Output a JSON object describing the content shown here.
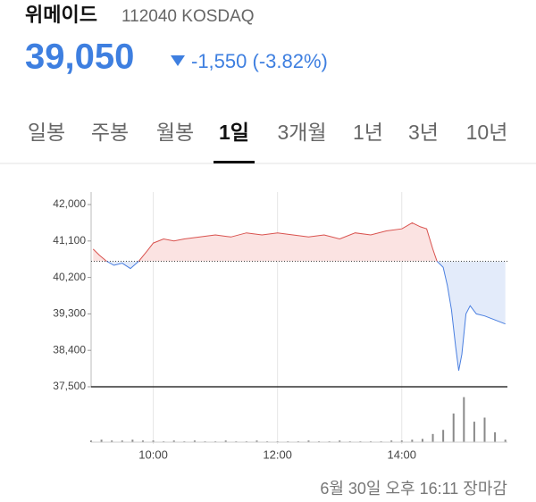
{
  "header": {
    "name": "위메이드",
    "code": "112040 KOSDAQ",
    "price": "39,050",
    "change": "-1,550 (-3.82%)"
  },
  "tabs": [
    "일봉",
    "주봉",
    "월봉",
    "1일",
    "3개월",
    "1년",
    "3년",
    "10년"
  ],
  "selected_tab": 3,
  "chart_data": {
    "type": "line",
    "series": [
      {
        "name": "price",
        "color": "#d9534f",
        "color_below": "#4a7fe0",
        "x": [
          542,
          548,
          555,
          562,
          570,
          578,
          586,
          594,
          600,
          610,
          620,
          630,
          645,
          660,
          675,
          690,
          705,
          720,
          735,
          750,
          765,
          780,
          795,
          810,
          825,
          840,
          850,
          858,
          864,
          870,
          874,
          880,
          884,
          888,
          892,
          895,
          898,
          902,
          906,
          912,
          920,
          930,
          940
        ],
        "values": [
          40900,
          40750,
          40600,
          40500,
          40550,
          40420,
          40600,
          40850,
          41050,
          41150,
          41100,
          41150,
          41200,
          41250,
          41200,
          41300,
          41250,
          41300,
          41250,
          41200,
          41250,
          41150,
          41300,
          41250,
          41350,
          41400,
          41550,
          41450,
          41400,
          40900,
          40600,
          40450,
          40000,
          39400,
          38500,
          37900,
          38300,
          39300,
          39500,
          39300,
          39250,
          39150,
          39050
        ]
      }
    ],
    "base_value": 40600,
    "xlim": [
      540,
      942
    ],
    "ylim": [
      37500,
      42000
    ],
    "yticks": [
      {
        "value": 42000,
        "label": "42,000"
      },
      {
        "value": 41100,
        "label": "41,100"
      },
      {
        "value": 40200,
        "label": "40,200"
      },
      {
        "value": 39300,
        "label": "39,300"
      },
      {
        "value": 38400,
        "label": "38,400"
      },
      {
        "value": 37500,
        "label": "37,500"
      }
    ],
    "xticks": [
      {
        "value": 600,
        "label": "10:00"
      },
      {
        "value": 720,
        "label": "12:00"
      },
      {
        "value": 840,
        "label": "14:00"
      }
    ],
    "volume": {
      "color": "#8a8a8a",
      "ylim": [
        0,
        60
      ],
      "x": [
        540,
        550,
        560,
        570,
        580,
        590,
        600,
        610,
        620,
        630,
        640,
        650,
        660,
        670,
        680,
        690,
        700,
        710,
        720,
        730,
        740,
        750,
        760,
        770,
        780,
        790,
        800,
        810,
        820,
        830,
        840,
        850,
        860,
        870,
        880,
        890,
        900,
        910,
        920,
        930,
        940
      ],
      "values": [
        2,
        3,
        2,
        2,
        3,
        2,
        2,
        1,
        2,
        1,
        2,
        1,
        1,
        2,
        1,
        1,
        2,
        1,
        1,
        1,
        1,
        2,
        1,
        1,
        2,
        1,
        1,
        1,
        1,
        2,
        2,
        3,
        4,
        10,
        15,
        35,
        55,
        25,
        30,
        12,
        3
      ]
    },
    "grid": true
  },
  "footer": "6월 30일 오후 16:11 장마감"
}
